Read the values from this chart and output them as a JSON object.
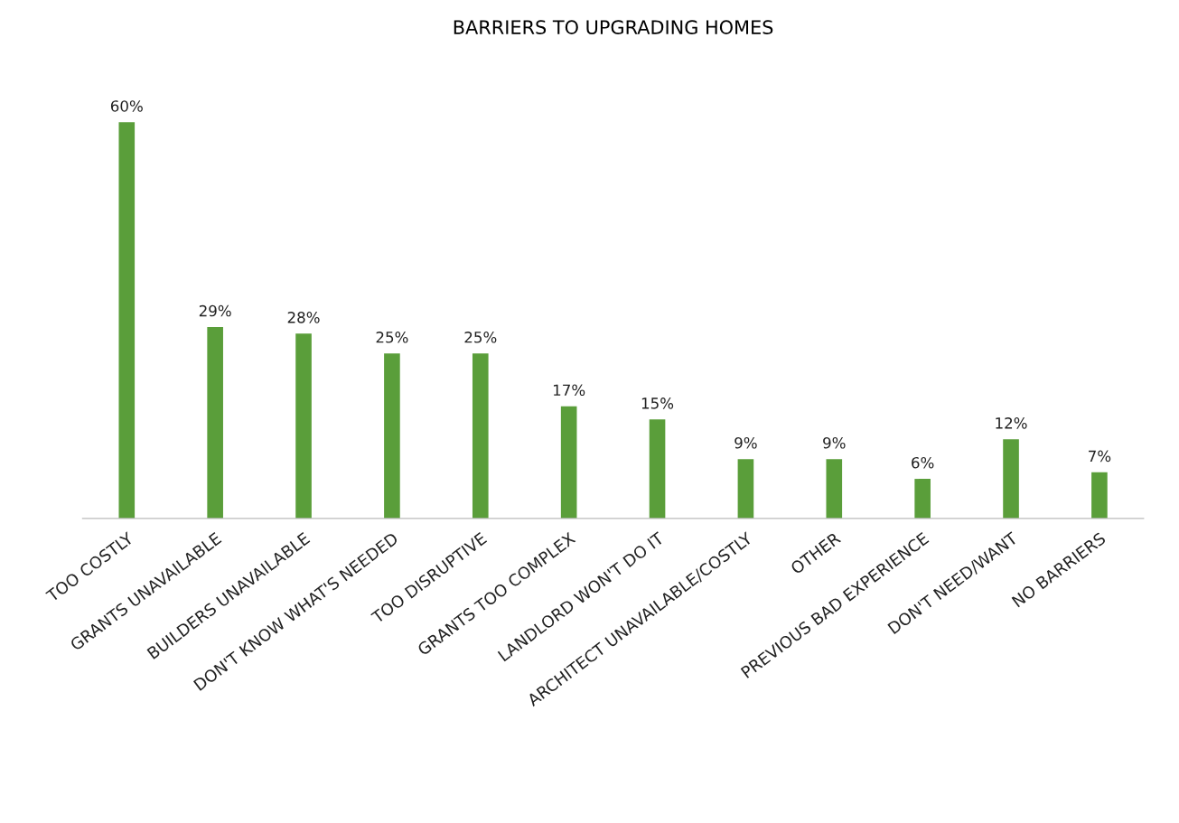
{
  "chart_data": {
    "type": "bar",
    "title": "BARRIERS TO UPGRADING HOMES",
    "categories": [
      "TOO COSTLY",
      "GRANTS UNAVAILABLE",
      "BUILDERS UNAVAILABLE",
      "DON'T KNOW WHAT'S NEEDED",
      "TOO DISRUPTIVE",
      "GRANTS TOO COMPLEX",
      "LANDLORD WON'T DO IT",
      "ARCHITECT UNAVAILABLE/COSTLY",
      "OTHER",
      "PREVIOUS BAD EXPERIENCE",
      "DON'T NEED/WANT",
      "NO BARRIERS"
    ],
    "values": [
      60,
      29,
      28,
      25,
      25,
      17,
      15,
      9,
      9,
      6,
      12,
      7
    ],
    "value_labels": [
      "60%",
      "29%",
      "28%",
      "25%",
      "25%",
      "17%",
      "15%",
      "9%",
      "9%",
      "6%",
      "12%",
      "7%"
    ],
    "color": "#5a9e3a",
    "grid": false,
    "legend": false
  }
}
